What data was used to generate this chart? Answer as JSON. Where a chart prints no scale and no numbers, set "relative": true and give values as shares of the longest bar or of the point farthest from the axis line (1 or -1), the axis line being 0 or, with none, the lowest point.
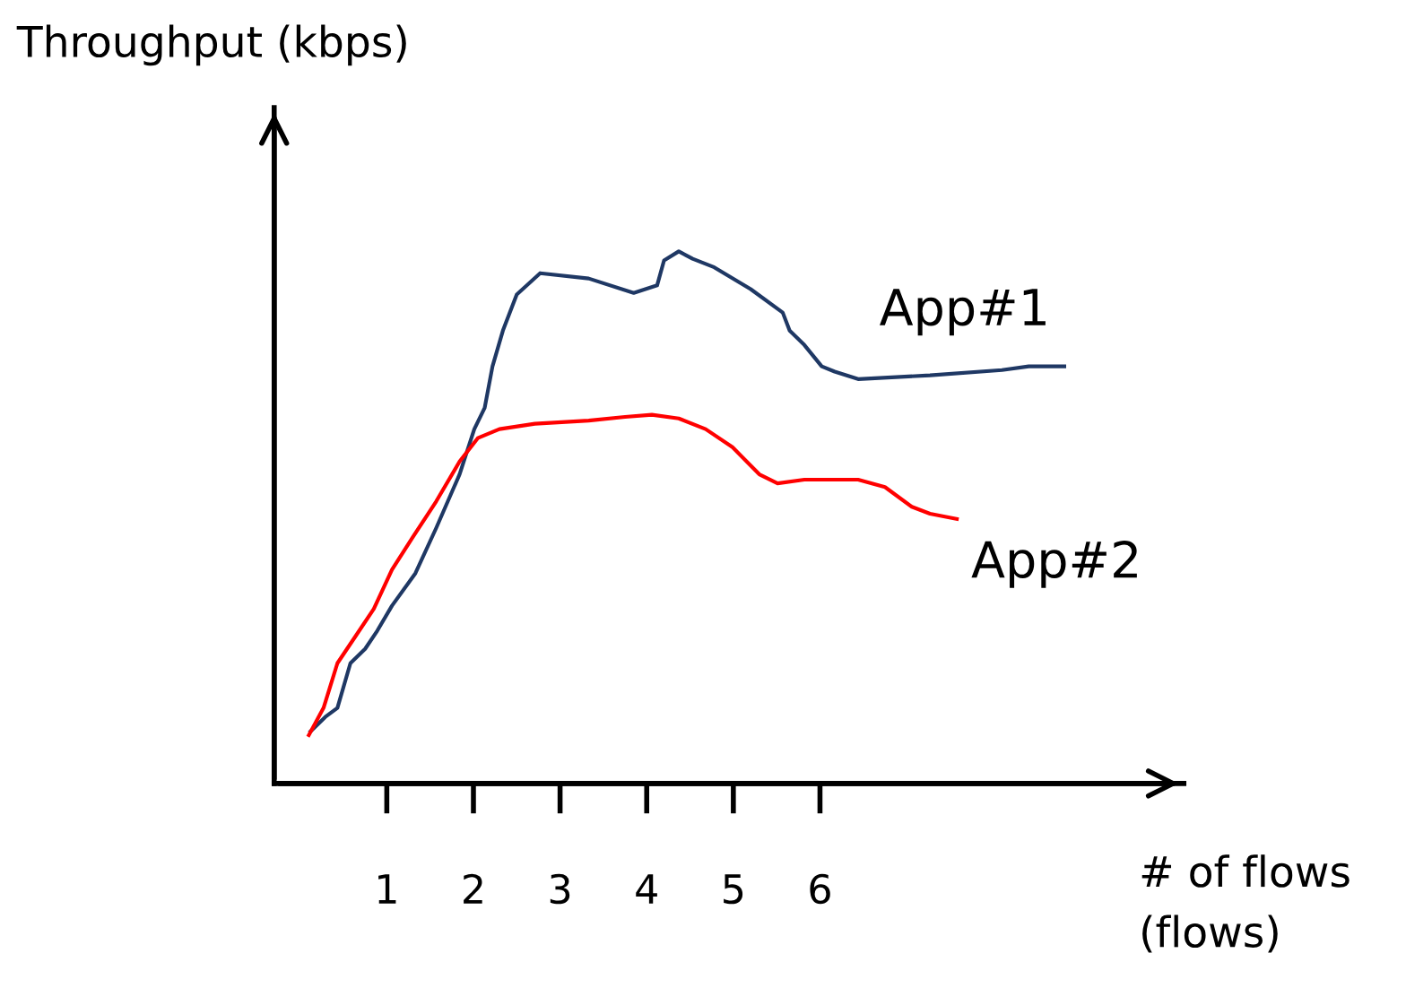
{
  "chart_data": {
    "type": "line",
    "relative": true,
    "xlabel": "# of flows\n(flows)",
    "ylabel": "Throughput (kbps)",
    "xlim": [
      -0.3,
      10.2
    ],
    "xticks": [
      1,
      2,
      3,
      4,
      5,
      6
    ],
    "grid": false,
    "legend": false,
    "marker": "none",
    "line_style": "solid",
    "series": [
      {
        "name": "App#1",
        "color": "#1f3864",
        "x": [
          0.12,
          0.29,
          0.43,
          0.58,
          0.75,
          0.89,
          1.06,
          1.33,
          1.57,
          1.84,
          2.01,
          2.13,
          2.22,
          2.34,
          2.5,
          2.77,
          3.33,
          3.85,
          4.12,
          4.2,
          4.37,
          4.53,
          4.78,
          5.2,
          5.57,
          5.65,
          5.82,
          6.02,
          6.17,
          6.44,
          7.27,
          8.1,
          8.41,
          8.82
        ],
        "values": [
          0.098,
          0.125,
          0.142,
          0.226,
          0.253,
          0.287,
          0.334,
          0.395,
          0.48,
          0.581,
          0.666,
          0.706,
          0.784,
          0.851,
          0.919,
          0.959,
          0.949,
          0.922,
          0.936,
          0.983,
          1.0,
          0.986,
          0.97,
          0.929,
          0.885,
          0.851,
          0.824,
          0.784,
          0.774,
          0.76,
          0.767,
          0.777,
          0.784,
          0.784
        ]
      },
      {
        "name": "App#2",
        "color": "#ff0000",
        "x": [
          0.1,
          0.27,
          0.43,
          0.64,
          0.85,
          1.06,
          1.3,
          1.57,
          1.84,
          2.05,
          2.3,
          2.71,
          3.33,
          3.75,
          4.06,
          4.37,
          4.68,
          4.99,
          5.3,
          5.51,
          5.82,
          6.44,
          6.75,
          7.06,
          7.27,
          7.58
        ],
        "values": [
          0.091,
          0.142,
          0.226,
          0.277,
          0.328,
          0.402,
          0.463,
          0.53,
          0.605,
          0.649,
          0.666,
          0.676,
          0.682,
          0.689,
          0.693,
          0.686,
          0.666,
          0.632,
          0.581,
          0.564,
          0.571,
          0.571,
          0.557,
          0.52,
          0.507,
          0.497
        ]
      }
    ]
  }
}
